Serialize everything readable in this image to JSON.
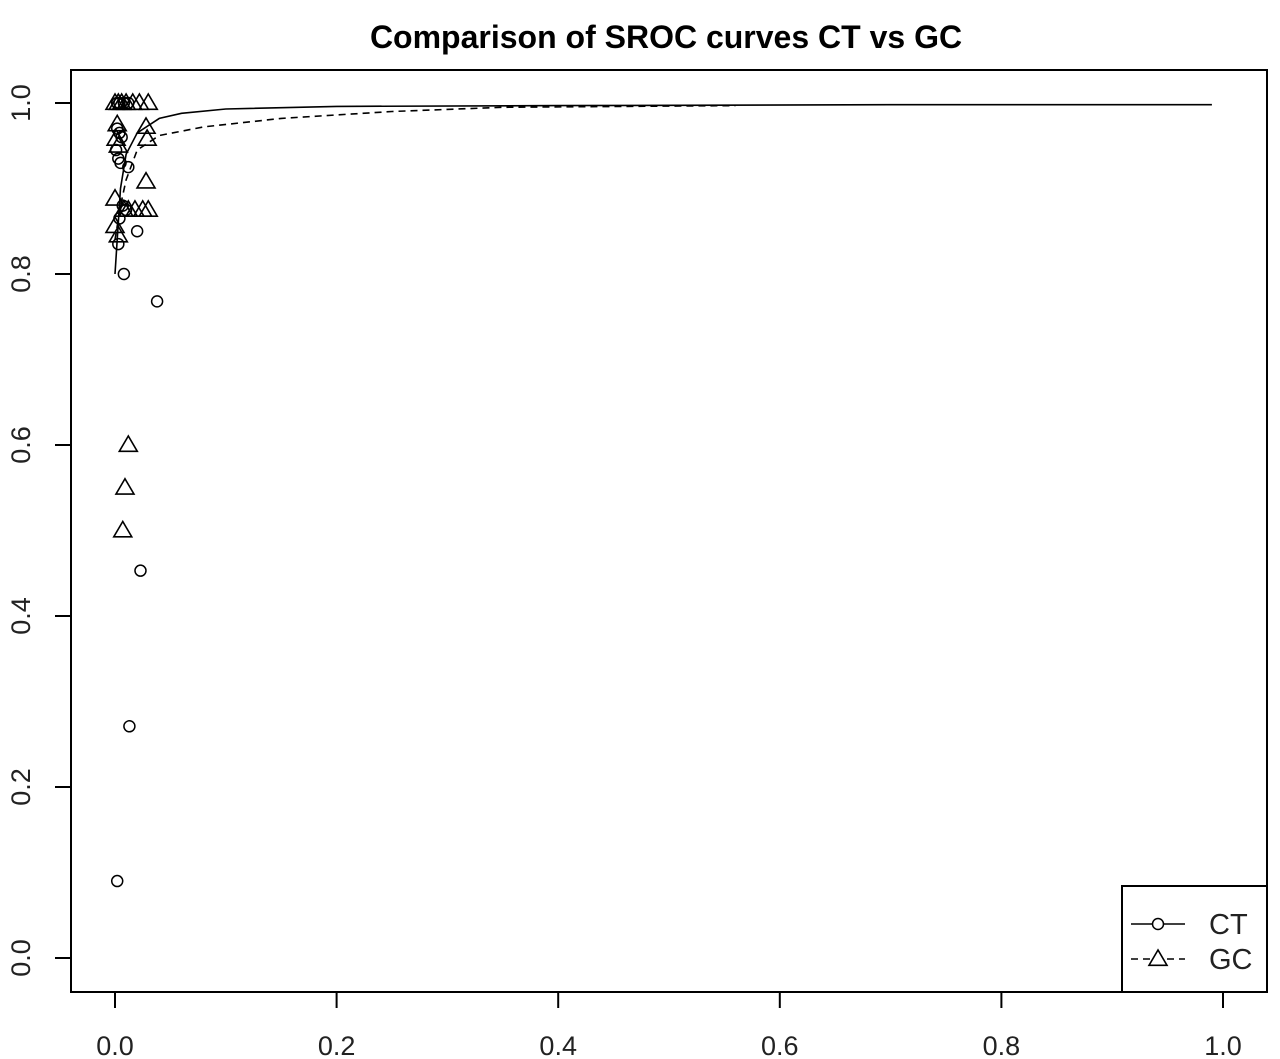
{
  "chart_data": {
    "type": "scatter",
    "title": "Comparison of SROC curves CT vs GC",
    "xlabel": "",
    "ylabel": "",
    "xlim": [
      0.0,
      1.0
    ],
    "ylim": [
      0.0,
      1.0
    ],
    "x_ticks": [
      "0.0",
      "0.2",
      "0.4",
      "0.6",
      "0.8",
      "1.0"
    ],
    "y_ticks": [
      "0.0",
      "0.2",
      "0.4",
      "0.6",
      "0.8",
      "1.0"
    ],
    "grid": false,
    "legend_position": "bottom-right",
    "series": [
      {
        "name": "CT",
        "marker": "circle",
        "line_style": "solid",
        "points": [
          {
            "x": 0.002,
            "y": 1.0
          },
          {
            "x": 0.004,
            "y": 1.0
          },
          {
            "x": 0.008,
            "y": 1.0
          },
          {
            "x": 0.012,
            "y": 1.0
          },
          {
            "x": 0.002,
            "y": 0.97
          },
          {
            "x": 0.004,
            "y": 0.965
          },
          {
            "x": 0.006,
            "y": 0.96
          },
          {
            "x": 0.001,
            "y": 0.945
          },
          {
            "x": 0.003,
            "y": 0.935
          },
          {
            "x": 0.005,
            "y": 0.93
          },
          {
            "x": 0.012,
            "y": 0.925
          },
          {
            "x": 0.007,
            "y": 0.88
          },
          {
            "x": 0.01,
            "y": 0.875
          },
          {
            "x": 0.004,
            "y": 0.865
          },
          {
            "x": 0.02,
            "y": 0.85
          },
          {
            "x": 0.003,
            "y": 0.835
          },
          {
            "x": 0.008,
            "y": 0.8
          },
          {
            "x": 0.038,
            "y": 0.768
          },
          {
            "x": 0.023,
            "y": 0.453
          },
          {
            "x": 0.013,
            "y": 0.271
          },
          {
            "x": 0.002,
            "y": 0.09
          }
        ],
        "curve": [
          {
            "x": 0.0,
            "y": 0.8
          },
          {
            "x": 0.005,
            "y": 0.9
          },
          {
            "x": 0.01,
            "y": 0.94
          },
          {
            "x": 0.02,
            "y": 0.965
          },
          {
            "x": 0.04,
            "y": 0.982
          },
          {
            "x": 0.06,
            "y": 0.988
          },
          {
            "x": 0.1,
            "y": 0.993
          },
          {
            "x": 0.2,
            "y": 0.996
          },
          {
            "x": 0.4,
            "y": 0.997
          },
          {
            "x": 0.7,
            "y": 0.998
          },
          {
            "x": 0.99,
            "y": 0.998
          }
        ]
      },
      {
        "name": "GC",
        "marker": "triangle",
        "line_style": "dashed",
        "points": [
          {
            "x": 0.0,
            "y": 1.0
          },
          {
            "x": 0.003,
            "y": 1.0
          },
          {
            "x": 0.006,
            "y": 1.0
          },
          {
            "x": 0.01,
            "y": 1.0
          },
          {
            "x": 0.016,
            "y": 1.0
          },
          {
            "x": 0.022,
            "y": 1.0
          },
          {
            "x": 0.03,
            "y": 1.0
          },
          {
            "x": 0.002,
            "y": 0.975
          },
          {
            "x": 0.028,
            "y": 0.972
          },
          {
            "x": 0.001,
            "y": 0.958
          },
          {
            "x": 0.029,
            "y": 0.958
          },
          {
            "x": 0.003,
            "y": 0.95
          },
          {
            "x": 0.028,
            "y": 0.908
          },
          {
            "x": 0.0,
            "y": 0.888
          },
          {
            "x": 0.008,
            "y": 0.875
          },
          {
            "x": 0.012,
            "y": 0.875
          },
          {
            "x": 0.018,
            "y": 0.875
          },
          {
            "x": 0.025,
            "y": 0.875
          },
          {
            "x": 0.03,
            "y": 0.875
          },
          {
            "x": 0.0,
            "y": 0.856
          },
          {
            "x": 0.003,
            "y": 0.845
          },
          {
            "x": 0.012,
            "y": 0.6
          },
          {
            "x": 0.009,
            "y": 0.55
          },
          {
            "x": 0.007,
            "y": 0.5
          }
        ],
        "curve": [
          {
            "x": 0.0,
            "y": 0.84
          },
          {
            "x": 0.005,
            "y": 0.88
          },
          {
            "x": 0.01,
            "y": 0.91
          },
          {
            "x": 0.02,
            "y": 0.945
          },
          {
            "x": 0.04,
            "y": 0.962
          },
          {
            "x": 0.08,
            "y": 0.972
          },
          {
            "x": 0.15,
            "y": 0.982
          },
          {
            "x": 0.25,
            "y": 0.99
          },
          {
            "x": 0.35,
            "y": 0.995
          },
          {
            "x": 0.56,
            "y": 0.997
          }
        ]
      }
    ]
  }
}
